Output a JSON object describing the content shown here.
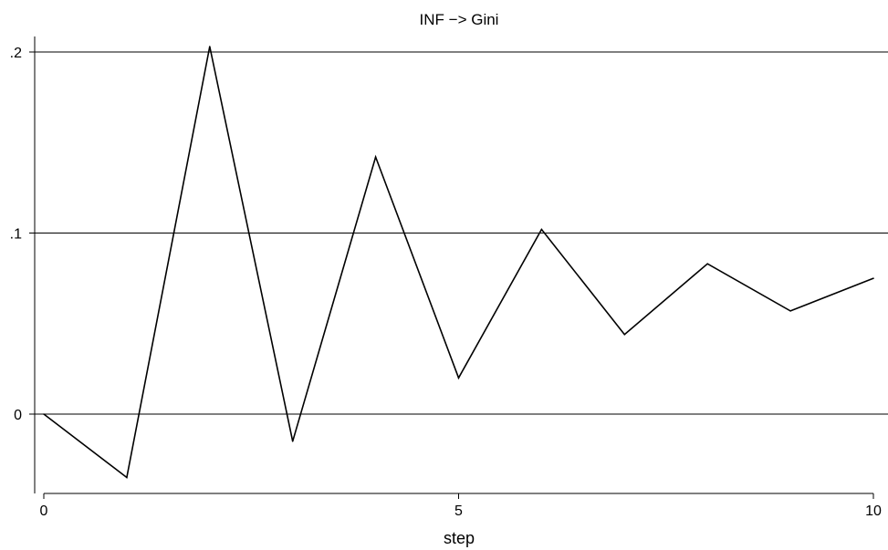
{
  "chart_data": {
    "type": "line",
    "title": "INF −> Gini",
    "xlabel": "step",
    "ylabel": "",
    "x": [
      0,
      1,
      2,
      3,
      4,
      5,
      6,
      7,
      8,
      9,
      10
    ],
    "series": [
      {
        "values": [
          0.0,
          -0.035,
          0.203,
          -0.015,
          0.142,
          0.02,
          0.102,
          0.044,
          0.083,
          0.057,
          0.075
        ]
      }
    ],
    "xlim": [
      0,
      10
    ],
    "ylim": [
      -0.04,
      0.21
    ],
    "xticks": [
      0,
      5,
      10
    ],
    "xtick_labels": [
      "0",
      "5",
      "10"
    ],
    "yticks": [
      0,
      0.1,
      0.2
    ],
    "ytick_labels": [
      "0",
      ".1",
      ".2"
    ],
    "grid": true,
    "legend": "none",
    "line_color": "#000000",
    "grid_color": "#000000"
  }
}
